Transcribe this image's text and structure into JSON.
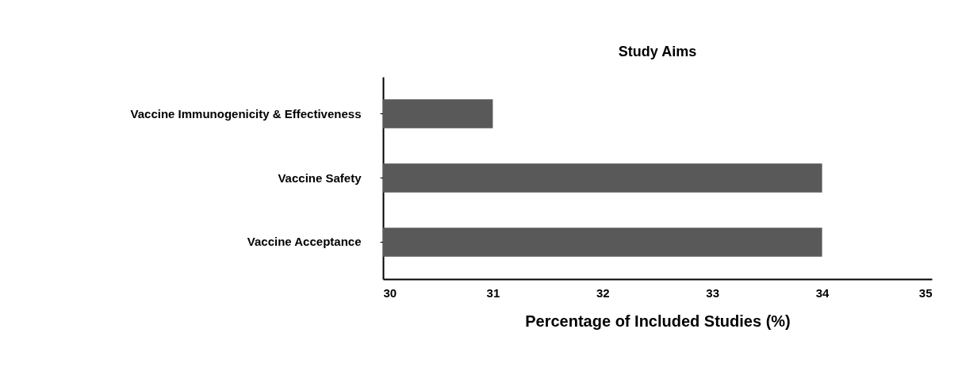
{
  "chart_data": {
    "type": "bar",
    "orientation": "horizontal",
    "title": "Study Aims",
    "xlabel": "Percentage of Included Studies (%)",
    "categories": [
      "Vaccine Immunogenicity & Effectiveness",
      "Vaccine Safety",
      "Vaccine Acceptance"
    ],
    "values": [
      31,
      34,
      34
    ],
    "color": "#595959",
    "xlim": [
      30,
      35
    ],
    "xticks": [
      30,
      31,
      32,
      33,
      34,
      35
    ],
    "grid": false
  }
}
